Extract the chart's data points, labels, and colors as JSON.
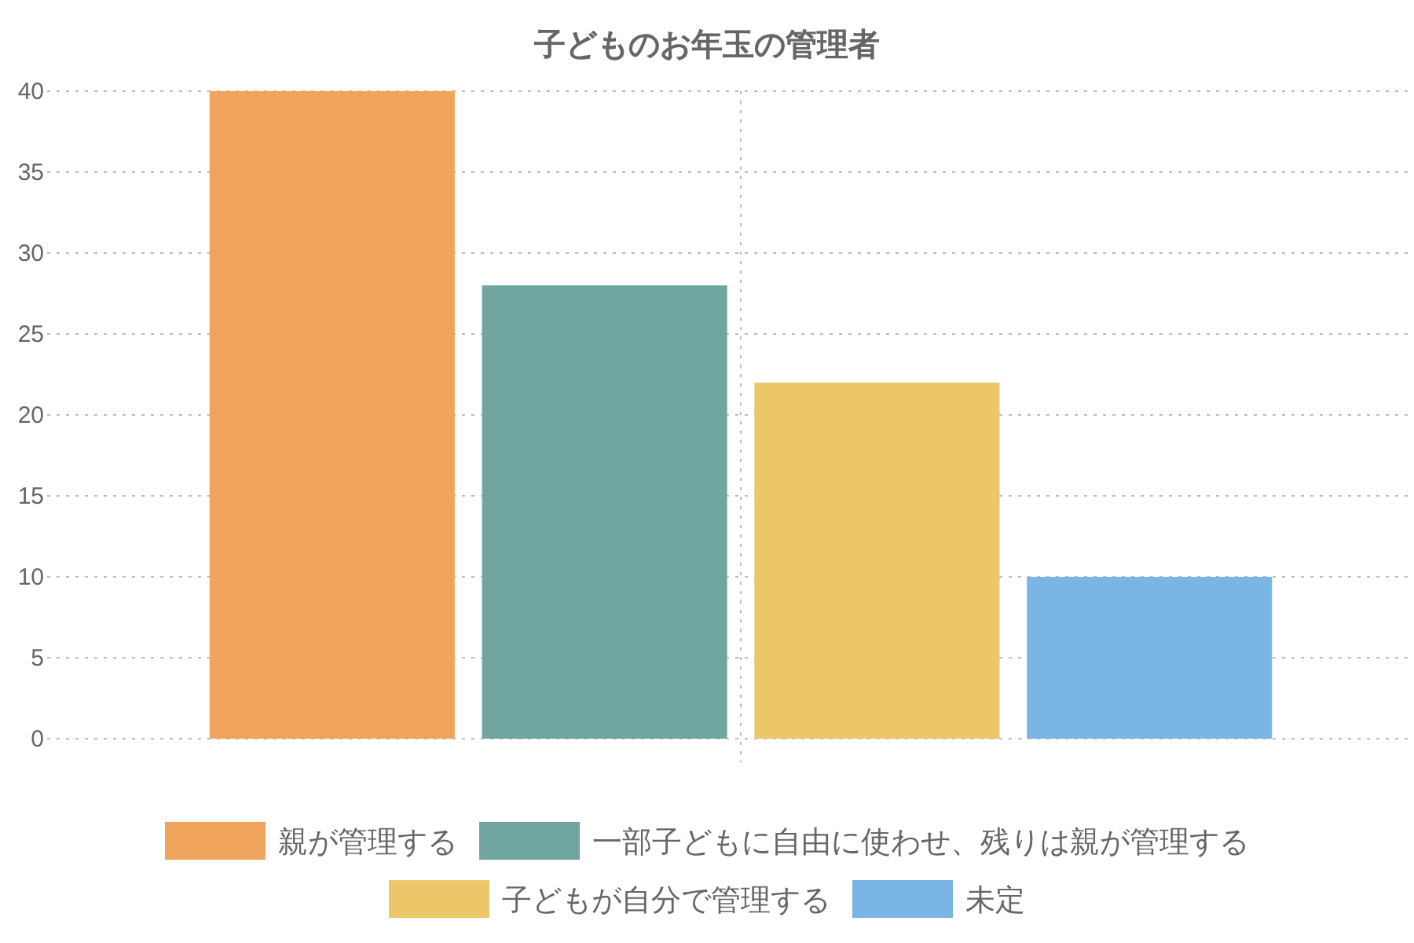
{
  "chart_data": {
    "type": "bar",
    "title": "子どものお年玉の管理者",
    "categories": [
      null
    ],
    "series": [
      {
        "name": "親が管理する",
        "color": "#f0a35a",
        "values": [
          40
        ]
      },
      {
        "name": "一部子どもに自由に使わせ、残りは親が管理する",
        "color": "#71a6a0",
        "values": [
          28
        ]
      },
      {
        "name": "子どもが自分で管理する",
        "color": "#ecc76a",
        "values": [
          22
        ]
      },
      {
        "name": "未定",
        "color": "#7ab5e6",
        "values": [
          10
        ]
      }
    ],
    "ylim": [
      0,
      40
    ],
    "yticks": [
      0,
      5,
      10,
      15,
      20,
      25,
      30,
      35,
      40
    ],
    "grid": true,
    "legend": "bottom"
  }
}
